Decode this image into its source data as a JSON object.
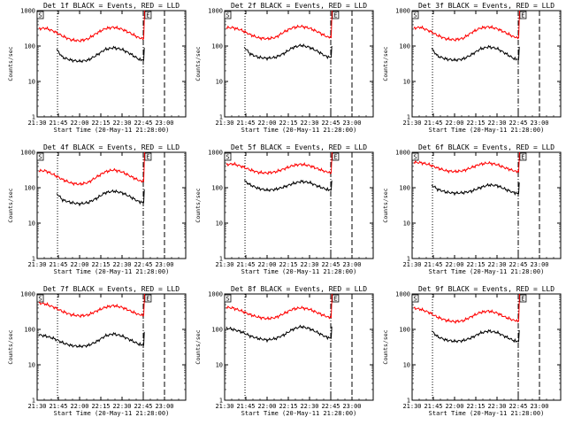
{
  "chart_data": {
    "shared": {
      "type": "line",
      "yscale": "log",
      "ylim": [
        1,
        1000
      ],
      "xlim_hours": [
        21.5,
        23.25
      ],
      "ylabel": "Counts/sec",
      "xlabel": "Start Time (20-May-11 21:28:00)",
      "x_tick_labels": [
        "21:30",
        "21:45",
        "22:00",
        "22:15",
        "22:30",
        "22:45",
        "23:00"
      ],
      "x_tick_hours": [
        21.5,
        21.75,
        22.0,
        22.25,
        22.5,
        22.75,
        23.0
      ],
      "y_tick_labels": [
        "1",
        "10",
        "100",
        "1000"
      ],
      "y_tick_values": [
        1,
        10,
        100,
        1000
      ],
      "vlines": [
        {
          "hour": 21.5,
          "style": "dashdot"
        },
        {
          "hour": 21.74,
          "style": "dotted"
        },
        {
          "hour": 22.75,
          "style": "dashdot"
        },
        {
          "hour": 23.0,
          "style": "longdash"
        }
      ],
      "flags": [
        {
          "label": "S",
          "hour": 21.5
        },
        {
          "label": "E",
          "hour": 22.77
        }
      ],
      "colors": {
        "events": "#000000",
        "lld": "#ff0000",
        "axes": "#000000"
      }
    },
    "panels": [
      {
        "title": "Det 1f BLACK = Events, RED = LLD",
        "series": [
          {
            "name": "Events",
            "x": [
              21.73,
              21.8,
              21.9,
              22.0,
              22.1,
              22.2,
              22.3,
              22.4,
              22.5,
              22.6,
              22.7,
              22.755,
              22.762
            ],
            "y": [
              80,
              48,
              40,
              37,
              40,
              55,
              80,
              90,
              80,
              60,
              42,
              40,
              90
            ]
          },
          {
            "name": "LLD",
            "x": [
              21.52,
              21.6,
              21.7,
              21.8,
              21.9,
              22.0,
              22.1,
              22.2,
              22.3,
              22.4,
              22.5,
              22.6,
              22.7,
              22.755,
              22.765
            ],
            "y": [
              310,
              320,
              260,
              190,
              150,
              140,
              160,
              230,
              310,
              340,
              300,
              230,
              170,
              160,
              1000
            ]
          }
        ]
      },
      {
        "title": "Det 2f BLACK = Events, RED = LLD",
        "series": [
          {
            "name": "Events",
            "x": [
              21.73,
              21.8,
              21.9,
              22.0,
              22.1,
              22.2,
              22.3,
              22.4,
              22.5,
              22.6,
              22.7,
              22.755,
              22.762
            ],
            "y": [
              95,
              60,
              48,
              45,
              48,
              62,
              90,
              105,
              92,
              70,
              50,
              48,
              100
            ]
          },
          {
            "name": "LLD",
            "x": [
              21.52,
              21.6,
              21.7,
              21.8,
              21.9,
              22.0,
              22.1,
              22.2,
              22.3,
              22.4,
              22.5,
              22.6,
              22.7,
              22.755,
              22.765
            ],
            "y": [
              330,
              330,
              280,
              210,
              170,
              160,
              175,
              250,
              330,
              360,
              320,
              250,
              185,
              175,
              1000
            ]
          }
        ]
      },
      {
        "title": "Det 3f BLACK = Events, RED = LLD",
        "series": [
          {
            "name": "Events",
            "x": [
              21.73,
              21.8,
              21.9,
              22.0,
              22.1,
              22.2,
              22.3,
              22.4,
              22.5,
              22.6,
              22.7,
              22.755,
              22.762
            ],
            "y": [
              85,
              52,
              43,
              40,
              43,
              57,
              82,
              95,
              85,
              62,
              44,
              42,
              95
            ]
          },
          {
            "name": "LLD",
            "x": [
              21.52,
              21.6,
              21.7,
              21.8,
              21.9,
              22.0,
              22.1,
              22.2,
              22.3,
              22.4,
              22.5,
              22.6,
              22.7,
              22.755,
              22.765
            ],
            "y": [
              320,
              340,
              270,
              200,
              160,
              150,
              165,
              240,
              320,
              350,
              310,
              240,
              180,
              170,
              1000
            ]
          }
        ]
      },
      {
        "title": "Det 4f BLACK = Events, RED = LLD",
        "series": [
          {
            "name": "Events",
            "x": [
              21.73,
              21.8,
              21.9,
              22.0,
              22.1,
              22.2,
              22.3,
              22.4,
              22.5,
              22.6,
              22.7,
              22.755,
              22.762
            ],
            "y": [
              70,
              45,
              38,
              35,
              38,
              50,
              72,
              80,
              72,
              55,
              40,
              38,
              90
            ]
          },
          {
            "name": "LLD",
            "x": [
              21.52,
              21.6,
              21.7,
              21.8,
              21.9,
              22.0,
              22.1,
              22.2,
              22.3,
              22.4,
              22.5,
              22.6,
              22.7,
              22.755,
              22.765
            ],
            "y": [
              300,
              300,
              230,
              170,
              135,
              125,
              140,
              200,
              280,
              320,
              280,
              210,
              160,
              150,
              1000
            ]
          }
        ]
      },
      {
        "title": "Det 5f BLACK = Events, RED = LLD",
        "series": [
          {
            "name": "Events",
            "x": [
              21.73,
              21.8,
              21.9,
              22.0,
              22.1,
              22.2,
              22.3,
              22.4,
              22.5,
              22.6,
              22.7,
              22.755,
              22.762
            ],
            "y": [
              160,
              120,
              95,
              85,
              90,
              105,
              130,
              150,
              140,
              110,
              90,
              85,
              160
            ]
          },
          {
            "name": "LLD",
            "x": [
              21.52,
              21.6,
              21.7,
              21.8,
              21.9,
              22.0,
              22.1,
              22.2,
              22.3,
              22.4,
              22.5,
              22.6,
              22.7,
              22.755,
              22.765
            ],
            "y": [
              450,
              470,
              400,
              320,
              270,
              260,
              280,
              340,
              420,
              460,
              420,
              340,
              280,
              260,
              1000
            ]
          }
        ]
      },
      {
        "title": "Det 6f BLACK = Events, RED = LLD",
        "series": [
          {
            "name": "Events",
            "x": [
              21.73,
              21.8,
              21.9,
              22.0,
              22.1,
              22.2,
              22.3,
              22.4,
              22.5,
              22.6,
              22.7,
              22.755,
              22.762
            ],
            "y": [
              120,
              90,
              75,
              70,
              72,
              80,
              100,
              120,
              115,
              90,
              72,
              68,
              140
            ]
          },
          {
            "name": "LLD",
            "x": [
              21.52,
              21.6,
              21.7,
              21.8,
              21.9,
              22.0,
              22.1,
              22.2,
              22.3,
              22.4,
              22.5,
              22.6,
              22.7,
              22.755,
              22.765
            ],
            "y": [
              520,
              510,
              450,
              360,
              300,
              285,
              300,
              370,
              460,
              500,
              450,
              360,
              300,
              280,
              1000
            ]
          }
        ]
      },
      {
        "title": "Det 7f BLACK = Events, RED = LLD",
        "series": [
          {
            "name": "Events",
            "x": [
              21.52,
              21.6,
              21.7,
              21.8,
              21.9,
              22.0,
              22.1,
              22.2,
              22.3,
              22.4,
              22.5,
              22.6,
              22.7,
              22.755,
              22.762
            ],
            "y": [
              70,
              65,
              55,
              42,
              35,
              33,
              35,
              45,
              65,
              75,
              65,
              50,
              38,
              36,
              85
            ]
          },
          {
            "name": "LLD",
            "x": [
              21.52,
              21.6,
              21.7,
              21.8,
              21.9,
              22.0,
              22.1,
              22.2,
              22.3,
              22.4,
              22.5,
              22.6,
              22.7,
              22.755,
              22.765
            ],
            "y": [
              560,
              520,
              420,
              320,
              260,
              240,
              255,
              330,
              420,
              470,
              420,
              330,
              260,
              250,
              1000
            ]
          }
        ]
      },
      {
        "title": "Det 8f BLACK = Events, RED = LLD",
        "series": [
          {
            "name": "Events",
            "x": [
              21.52,
              21.6,
              21.7,
              21.8,
              21.9,
              22.0,
              22.1,
              22.2,
              22.3,
              22.4,
              22.5,
              22.6,
              22.7,
              22.755,
              22.762
            ],
            "y": [
              110,
              100,
              85,
              65,
              55,
              50,
              55,
              70,
              100,
              120,
              105,
              80,
              60,
              56,
              120
            ]
          },
          {
            "name": "LLD",
            "x": [
              21.52,
              21.6,
              21.7,
              21.8,
              21.9,
              22.0,
              22.1,
              22.2,
              22.3,
              22.4,
              22.5,
              22.6,
              22.7,
              22.755,
              22.765
            ],
            "y": [
              420,
              400,
              330,
              260,
              220,
              200,
              215,
              280,
              370,
              410,
              370,
              290,
              230,
              215,
              1000
            ]
          }
        ]
      },
      {
        "title": "Det 9f BLACK = Events, RED = LLD",
        "series": [
          {
            "name": "Events",
            "x": [
              21.73,
              21.8,
              21.9,
              22.0,
              22.1,
              22.2,
              22.3,
              22.4,
              22.5,
              22.6,
              22.7,
              22.755,
              22.762
            ],
            "y": [
              90,
              62,
              50,
              46,
              48,
              58,
              78,
              90,
              82,
              62,
              48,
              45,
              95
            ]
          },
          {
            "name": "LLD",
            "x": [
              21.52,
              21.6,
              21.7,
              21.8,
              21.9,
              22.0,
              22.1,
              22.2,
              22.3,
              22.4,
              22.5,
              22.6,
              22.7,
              22.755,
              22.765
            ],
            "y": [
              400,
              370,
              300,
              220,
              180,
              165,
              175,
              230,
              300,
              330,
              290,
              220,
              180,
              170,
              1000
            ]
          }
        ]
      }
    ]
  }
}
